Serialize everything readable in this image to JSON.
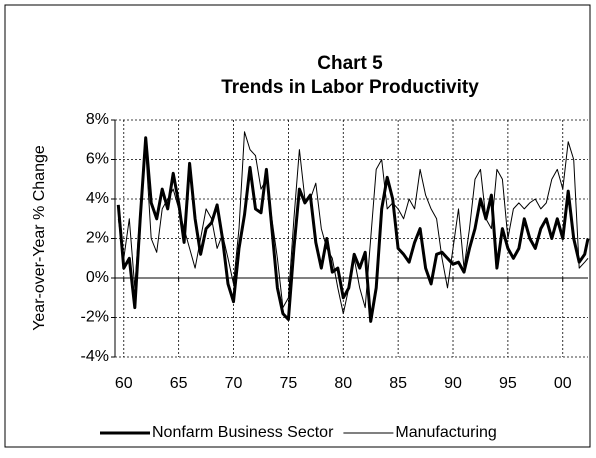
{
  "chart_data": {
    "type": "line",
    "title": "Chart 5",
    "subtitle": "Trends in Labor Productivity",
    "y_label": "Year-over-Year % Change",
    "x": [
      59.5,
      60,
      60.5,
      61,
      61.5,
      62,
      62.5,
      63,
      63.5,
      64,
      64.5,
      65,
      65.5,
      66,
      66.5,
      67,
      67.5,
      68,
      68.5,
      69,
      69.5,
      70,
      70.5,
      71,
      71.5,
      72,
      72.5,
      73,
      73.5,
      74,
      74.5,
      75,
      75.5,
      76,
      76.5,
      77,
      77.5,
      78,
      78.5,
      79,
      79.5,
      80,
      80.5,
      81,
      81.5,
      82,
      82.5,
      83,
      83.5,
      84,
      84.5,
      85,
      85.5,
      86,
      86.5,
      87,
      87.5,
      88,
      88.5,
      89,
      89.5,
      90,
      90.5,
      91,
      91.5,
      92,
      92.5,
      93,
      93.5,
      94,
      94.5,
      95,
      95.5,
      96,
      96.5,
      97,
      97.5,
      98,
      98.5,
      99,
      99.5,
      100,
      100.5,
      101,
      101.5,
      102,
      102.3
    ],
    "series": [
      {
        "name": "Nonfarm Business Sector",
        "color": "#000000",
        "width": 3,
        "values": [
          3.7,
          0.5,
          1.0,
          -1.5,
          3.0,
          7.1,
          3.8,
          3.0,
          4.5,
          3.5,
          5.3,
          3.8,
          1.8,
          5.8,
          3.0,
          1.2,
          2.5,
          2.8,
          3.7,
          2.0,
          -0.3,
          -1.2,
          1.5,
          3.2,
          5.6,
          3.5,
          3.3,
          5.5,
          2.5,
          -0.5,
          -1.8,
          -2.1,
          1.5,
          4.5,
          3.8,
          4.2,
          1.8,
          0.5,
          2.0,
          0.3,
          0.5,
          -1.0,
          -0.5,
          1.2,
          0.5,
          1.3,
          -2.2,
          -0.5,
          3.5,
          5.1,
          4.0,
          1.5,
          1.2,
          0.8,
          1.8,
          2.5,
          0.5,
          -0.3,
          1.2,
          1.3,
          1.0,
          0.7,
          0.8,
          0.3,
          1.5,
          2.5,
          4.0,
          3.0,
          4.2,
          0.5,
          2.5,
          1.5,
          1.0,
          1.5,
          3.0,
          2.0,
          1.5,
          2.5,
          3.0,
          2.0,
          3.0,
          2.0,
          4.4,
          2.0,
          0.8,
          1.2,
          2.0
        ]
      },
      {
        "name": "Manufacturing",
        "color": "#000000",
        "width": 1,
        "values": [
          3.0,
          1.0,
          3.0,
          -0.5,
          3.5,
          6.5,
          2.0,
          1.3,
          3.5,
          4.0,
          4.5,
          3.5,
          2.5,
          1.5,
          0.5,
          2.0,
          3.5,
          3.0,
          1.5,
          2.2,
          1.0,
          -0.3,
          2.5,
          7.4,
          6.5,
          6.2,
          4.5,
          5.0,
          3.0,
          1.0,
          -1.5,
          -1.0,
          3.0,
          6.5,
          4.0,
          4.0,
          4.8,
          2.5,
          1.5,
          1.0,
          -0.5,
          -1.8,
          -0.5,
          1.0,
          -0.5,
          -1.5,
          2.0,
          5.5,
          6.0,
          3.5,
          3.8,
          3.5,
          3.0,
          4.0,
          3.5,
          5.5,
          4.2,
          3.5,
          3.0,
          1.0,
          -0.5,
          1.5,
          3.5,
          0.5,
          2.5,
          5.0,
          5.5,
          3.0,
          2.5,
          5.5,
          5.0,
          2.0,
          3.5,
          3.8,
          3.5,
          3.8,
          4.0,
          3.5,
          3.8,
          5.0,
          5.5,
          4.5,
          6.9,
          6.0,
          0.5,
          0.8,
          1.0
        ]
      }
    ],
    "xlim": [
      59.2,
      102.3
    ],
    "xticks": [
      60,
      65,
      70,
      75,
      80,
      85,
      90,
      95,
      {
        "value": 100,
        "label": "00"
      }
    ],
    "ylim": [
      -4,
      8
    ],
    "yticks": [
      {
        "value": -4,
        "label": "-4%"
      },
      {
        "value": -2,
        "label": "-2%"
      },
      {
        "value": 0,
        "label": "0%"
      },
      {
        "value": 2,
        "label": "2%"
      },
      {
        "value": 4,
        "label": "4%"
      },
      {
        "value": 6,
        "label": "6%"
      },
      {
        "value": 8,
        "label": "8%"
      }
    ],
    "grid": true,
    "legend": "bottom"
  }
}
